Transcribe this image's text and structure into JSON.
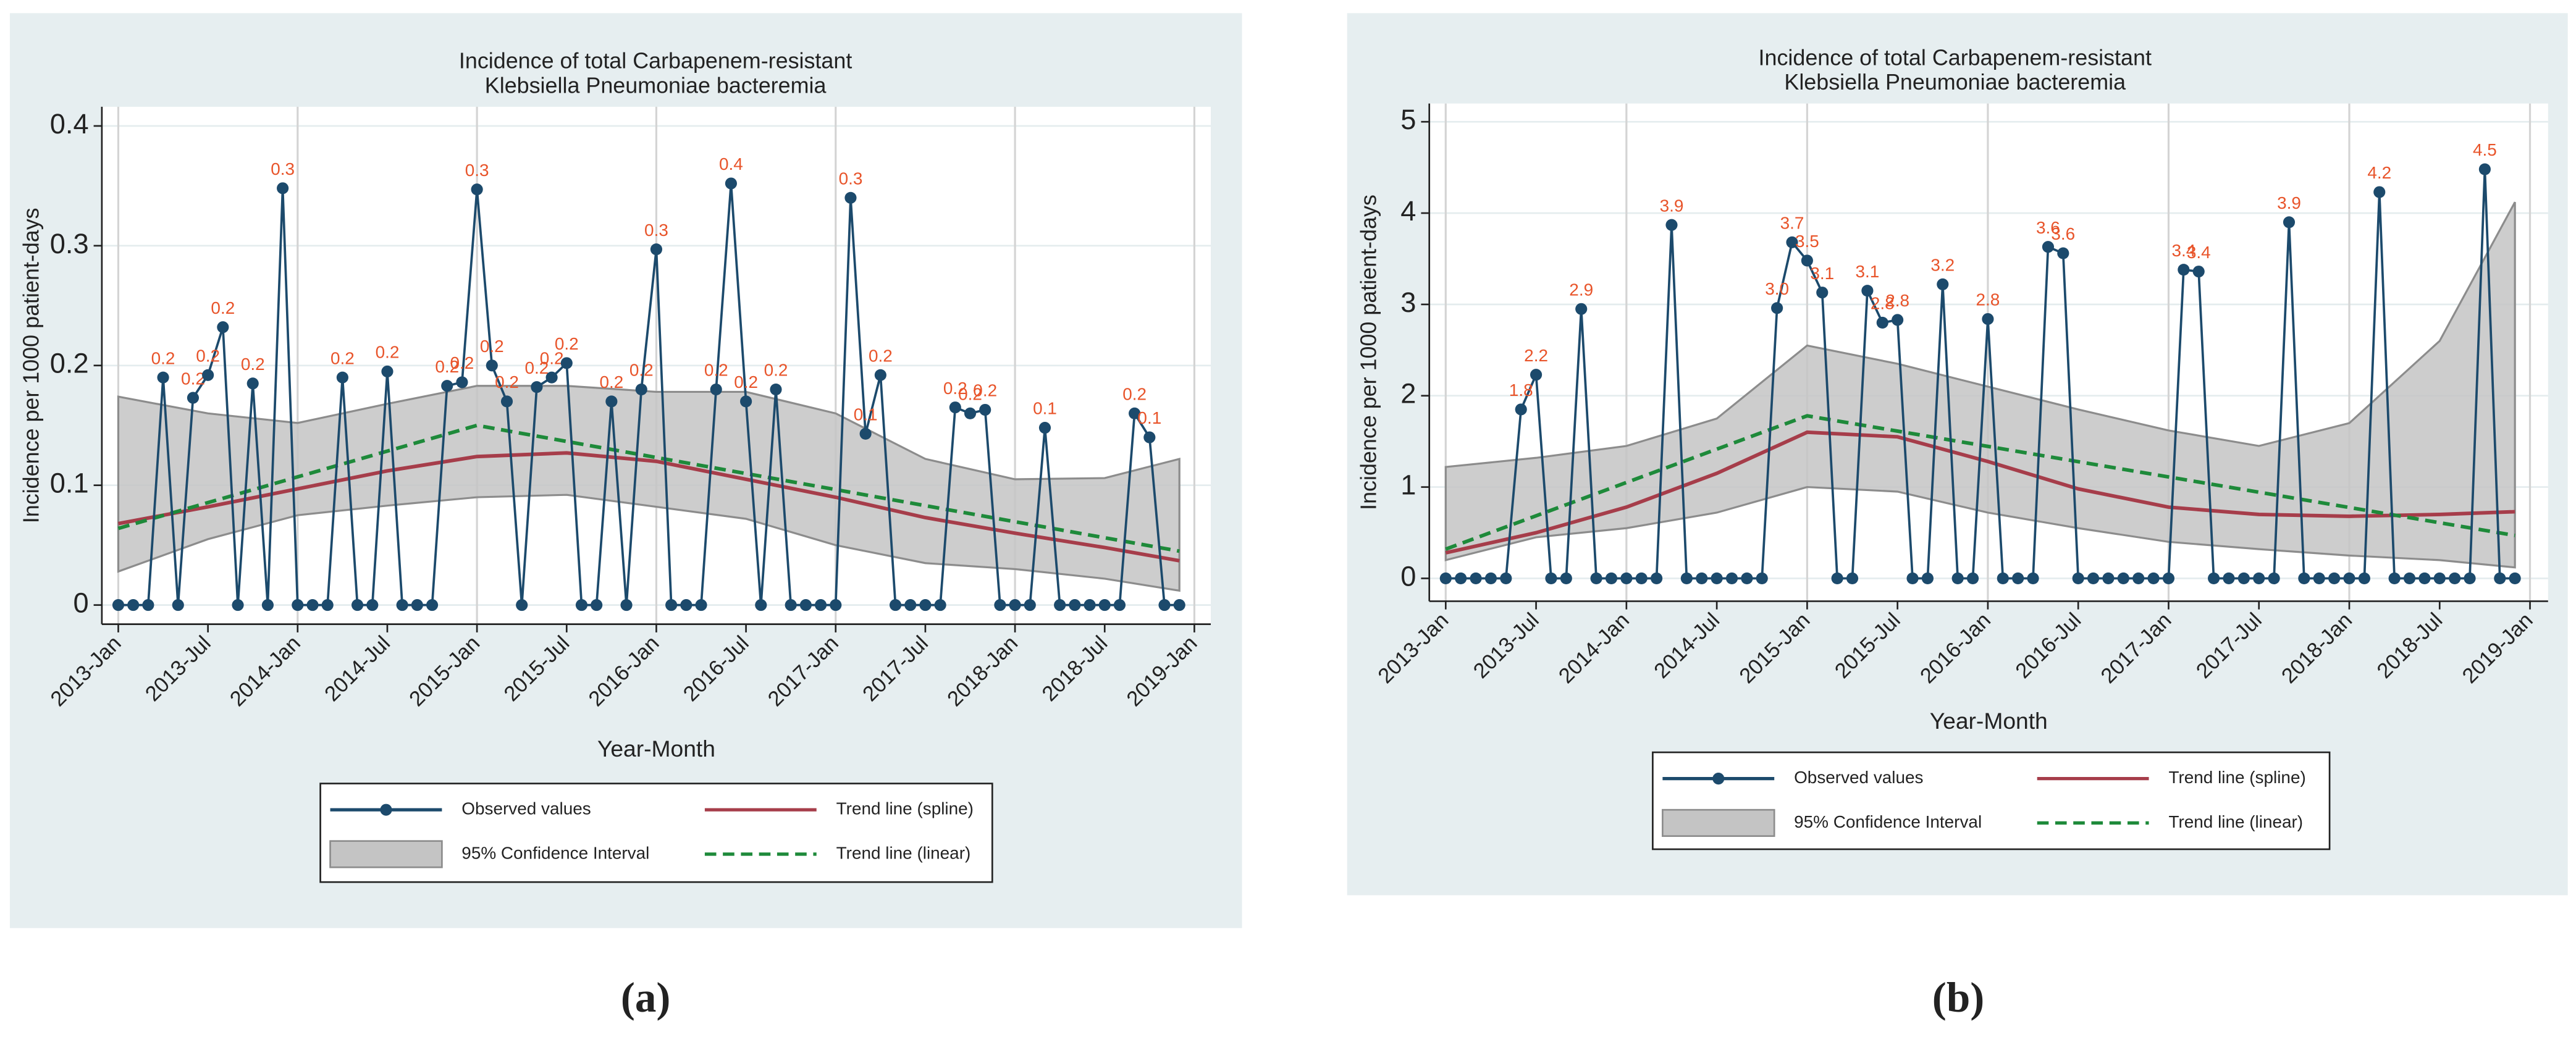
{
  "chart_data": [
    {
      "type": "line",
      "caption": "(a)",
      "title": [
        "Incidence of total Carbapenem-resistant",
        "Klebsiella Pneumoniae bacteremia"
      ],
      "x_label": "Year-Month",
      "y_label": "Incidence per 1000 patient-days",
      "x": [
        "2013-Jan",
        "2013-Feb",
        "2013-Mar",
        "2013-Apr",
        "2013-May",
        "2013-Jun",
        "2013-Jul",
        "2013-Aug",
        "2013-Sep",
        "2013-Oct",
        "2013-Nov",
        "2013-Dec",
        "2014-Jan",
        "2014-Feb",
        "2014-Mar",
        "2014-Apr",
        "2014-May",
        "2014-Jun",
        "2014-Jul",
        "2014-Aug",
        "2014-Sep",
        "2014-Oct",
        "2014-Nov",
        "2014-Dec",
        "2015-Jan",
        "2015-Feb",
        "2015-Mar",
        "2015-Apr",
        "2015-May",
        "2015-Jun",
        "2015-Jul",
        "2015-Aug",
        "2015-Sep",
        "2015-Oct",
        "2015-Nov",
        "2015-Dec",
        "2016-Jan",
        "2016-Feb",
        "2016-Mar",
        "2016-Apr",
        "2016-May",
        "2016-Jun",
        "2016-Jul",
        "2016-Aug",
        "2016-Sep",
        "2016-Oct",
        "2016-Nov",
        "2016-Dec",
        "2017-Jan",
        "2017-Feb",
        "2017-Mar",
        "2017-Apr",
        "2017-May",
        "2017-Jun",
        "2017-Jul",
        "2017-Aug",
        "2017-Sep",
        "2017-Oct",
        "2017-Nov",
        "2017-Dec",
        "2018-Jan",
        "2018-Feb",
        "2018-Mar",
        "2018-Apr",
        "2018-May",
        "2018-Jun",
        "2018-Jul",
        "2018-Aug",
        "2018-Sep",
        "2018-Oct",
        "2018-Nov",
        "2018-Dec"
      ],
      "xticks": [
        "2013-Jan",
        "2013-Jul",
        "2014-Jan",
        "2014-Jul",
        "2015-Jan",
        "2015-Jul",
        "2016-Jan",
        "2016-Jul",
        "2017-Jan",
        "2017-Jul",
        "2018-Jan",
        "2018-Jul",
        "2019-Jan"
      ],
      "ylim": [
        -0.016,
        0.416
      ],
      "yticks": [
        0,
        0.1,
        0.2,
        0.3,
        0.4
      ],
      "grid": true,
      "series": [
        {
          "name": "Observed values",
          "color": "#1c4a6c",
          "label_color": "#e8542a",
          "values": [
            0,
            0,
            0,
            0.19,
            0,
            0.173,
            0.192,
            0.232,
            0,
            0.185,
            0,
            0.348,
            0,
            0,
            0,
            0.19,
            0,
            0,
            0.195,
            0,
            0,
            0,
            0.183,
            0.186,
            0.347,
            0.2,
            0.17,
            0,
            0.182,
            0.19,
            0.202,
            0,
            0,
            0.17,
            0,
            0.18,
            0.297,
            0,
            0,
            0,
            0.18,
            0.352,
            0.17,
            0,
            0.18,
            0,
            0,
            0,
            0,
            0.34,
            0.143,
            0.192,
            0,
            0,
            0,
            0,
            0.165,
            0.16,
            0.163,
            0,
            0,
            0,
            0.148,
            0,
            0,
            0,
            0,
            0,
            0.16,
            0.14,
            0,
            0
          ],
          "value_labels": [
            null,
            null,
            null,
            "0.2",
            null,
            "0.2",
            "0.2",
            "0.2",
            null,
            "0.2",
            null,
            "0.3",
            null,
            null,
            null,
            "0.2",
            null,
            null,
            "0.2",
            null,
            null,
            null,
            "0.2",
            "0.2",
            "0.3",
            "0.2",
            "0.2",
            null,
            "0.2",
            "0.2",
            "0.2",
            null,
            null,
            "0.2",
            null,
            "0.2",
            "0.3",
            null,
            null,
            null,
            "0.2",
            "0.4",
            "0.2",
            null,
            "0.2",
            null,
            null,
            null,
            null,
            "0.3",
            "0.1",
            "0.2",
            null,
            null,
            null,
            null,
            "0.2",
            "0.2",
            "0.2",
            null,
            null,
            null,
            "0.1",
            null,
            null,
            null,
            null,
            null,
            "0.2",
            "0.1",
            null,
            null
          ]
        },
        {
          "name": "Trend line (spline)",
          "color": "#a63d4a",
          "x": [
            "2013-Jan",
            "2013-Jul",
            "2014-Jan",
            "2014-Jul",
            "2015-Jan",
            "2015-Jul",
            "2016-Jan",
            "2016-Jul",
            "2017-Jan",
            "2017-Jul",
            "2018-Jan",
            "2018-Jul",
            "2018-Dec"
          ],
          "values": [
            0.068,
            0.082,
            0.097,
            0.112,
            0.124,
            0.127,
            0.12,
            0.105,
            0.09,
            0.073,
            0.06,
            0.048,
            0.037
          ]
        },
        {
          "name": "95% Confidence Interval",
          "color": "#c4c4c4",
          "x": [
            "2013-Jan",
            "2013-Jul",
            "2014-Jan",
            "2014-Jul",
            "2015-Jan",
            "2015-Jul",
            "2016-Jan",
            "2016-Jul",
            "2017-Jan",
            "2017-Jul",
            "2018-Jan",
            "2018-Jul",
            "2018-Dec"
          ],
          "upper": [
            0.174,
            0.16,
            0.152,
            0.168,
            0.183,
            0.183,
            0.178,
            0.178,
            0.16,
            0.122,
            0.105,
            0.106,
            0.122
          ],
          "lower": [
            0.028,
            0.055,
            0.075,
            0.083,
            0.09,
            0.092,
            0.082,
            0.072,
            0.05,
            0.035,
            0.03,
            0.022,
            0.012
          ]
        },
        {
          "name": "Trend line (linear)",
          "color": "#1e8a3a",
          "dashed": true,
          "x": [
            "2013-Jan",
            "2015-Jan",
            "2018-Dec"
          ],
          "values": [
            0.064,
            0.15,
            0.045
          ]
        }
      ]
    },
    {
      "type": "line",
      "caption": "(b)",
      "title": [
        "Incidence of total Carbapenem-resistant",
        "Klebsiella Pneumoniae bacteremia"
      ],
      "x_label": "Year-Month",
      "y_label": "Incidence per 1000 patient-days",
      "x": [
        "2013-Jan",
        "2013-Feb",
        "2013-Mar",
        "2013-Apr",
        "2013-May",
        "2013-Jun",
        "2013-Jul",
        "2013-Aug",
        "2013-Sep",
        "2013-Oct",
        "2013-Nov",
        "2013-Dec",
        "2014-Jan",
        "2014-Feb",
        "2014-Mar",
        "2014-Apr",
        "2014-May",
        "2014-Jun",
        "2014-Jul",
        "2014-Aug",
        "2014-Sep",
        "2014-Oct",
        "2014-Nov",
        "2014-Dec",
        "2015-Jan",
        "2015-Feb",
        "2015-Mar",
        "2015-Apr",
        "2015-May",
        "2015-Jun",
        "2015-Jul",
        "2015-Aug",
        "2015-Sep",
        "2015-Oct",
        "2015-Nov",
        "2015-Dec",
        "2016-Jan",
        "2016-Feb",
        "2016-Mar",
        "2016-Apr",
        "2016-May",
        "2016-Jun",
        "2016-Jul",
        "2016-Aug",
        "2016-Sep",
        "2016-Oct",
        "2016-Nov",
        "2016-Dec",
        "2017-Jan",
        "2017-Feb",
        "2017-Mar",
        "2017-Apr",
        "2017-May",
        "2017-Jun",
        "2017-Jul",
        "2017-Aug",
        "2017-Sep",
        "2017-Oct",
        "2017-Nov",
        "2017-Dec",
        "2018-Jan",
        "2018-Feb",
        "2018-Mar",
        "2018-Apr",
        "2018-May",
        "2018-Jun",
        "2018-Jul",
        "2018-Aug",
        "2018-Sep",
        "2018-Oct",
        "2018-Nov",
        "2018-Dec"
      ],
      "xticks": [
        "2013-Jan",
        "2013-Jul",
        "2014-Jan",
        "2014-Jul",
        "2015-Jan",
        "2015-Jul",
        "2016-Jan",
        "2016-Jul",
        "2017-Jan",
        "2017-Jul",
        "2018-Jan",
        "2018-Jul",
        "2019-Jan"
      ],
      "ylim": [
        -0.25,
        5.2
      ],
      "yticks": [
        0,
        1,
        2,
        3,
        4,
        5
      ],
      "grid": true,
      "series": [
        {
          "name": "Observed values",
          "color": "#1c4a6c",
          "label_color": "#e8542a",
          "values": [
            0,
            0,
            0,
            0,
            0,
            1.85,
            2.23,
            0,
            0,
            2.95,
            0,
            0,
            0,
            0,
            0,
            3.87,
            0,
            0,
            0,
            0,
            0,
            0,
            2.96,
            3.68,
            3.48,
            3.13,
            0,
            0,
            3.15,
            2.8,
            2.83,
            0,
            0,
            3.22,
            0,
            0,
            2.84,
            0,
            0,
            0,
            3.63,
            3.56,
            0,
            0,
            0,
            0,
            0,
            0,
            0,
            3.38,
            3.36,
            0,
            0,
            0,
            0,
            0,
            3.9,
            0,
            0,
            0,
            0,
            0,
            4.23,
            0,
            0,
            0,
            0,
            0,
            0,
            4.48,
            0,
            0
          ],
          "value_labels": [
            null,
            null,
            null,
            null,
            null,
            "1.8",
            "2.2",
            null,
            null,
            "2.9",
            null,
            null,
            null,
            null,
            null,
            "3.9",
            null,
            null,
            null,
            null,
            null,
            null,
            "3.0",
            "3.7",
            "3.5",
            "3.1",
            null,
            null,
            "3.1",
            "2.8",
            "2.8",
            null,
            null,
            "3.2",
            null,
            null,
            "2.8",
            null,
            null,
            null,
            "3.6",
            "3.6",
            null,
            null,
            null,
            null,
            null,
            null,
            null,
            "3.4",
            "3.4",
            null,
            null,
            null,
            null,
            null,
            "3.9",
            null,
            null,
            null,
            null,
            null,
            "4.2",
            null,
            null,
            null,
            null,
            null,
            null,
            "4.5",
            null,
            null
          ]
        },
        {
          "name": "Trend line (spline)",
          "color": "#a63d4a",
          "x": [
            "2013-Jan",
            "2013-Jul",
            "2014-Jan",
            "2014-Jul",
            "2015-Jan",
            "2015-Jul",
            "2016-Jan",
            "2016-Jul",
            "2017-Jan",
            "2017-Jul",
            "2018-Jan",
            "2018-Jul",
            "2018-Dec"
          ],
          "values": [
            0.28,
            0.5,
            0.78,
            1.15,
            1.6,
            1.55,
            1.28,
            0.98,
            0.78,
            0.7,
            0.68,
            0.7,
            0.73
          ]
        },
        {
          "name": "95% Confidence Interval",
          "color": "#c4c4c4",
          "x": [
            "2013-Jan",
            "2013-Jul",
            "2014-Jan",
            "2014-Jul",
            "2015-Jan",
            "2015-Jul",
            "2016-Jan",
            "2016-Jul",
            "2017-Jan",
            "2017-Jul",
            "2018-Jan",
            "2018-Jul",
            "2018-Dec"
          ],
          "upper": [
            1.22,
            1.32,
            1.45,
            1.75,
            2.55,
            2.35,
            2.1,
            1.85,
            1.62,
            1.45,
            1.7,
            2.6,
            4.12
          ],
          "lower": [
            0.2,
            0.45,
            0.55,
            0.72,
            1.0,
            0.95,
            0.72,
            0.55,
            0.4,
            0.32,
            0.25,
            0.2,
            0.12
          ]
        },
        {
          "name": "Trend line (linear)",
          "color": "#1e8a3a",
          "dashed": true,
          "x": [
            "2013-Jan",
            "2015-Jan",
            "2018-Dec"
          ],
          "values": [
            0.32,
            1.78,
            0.47
          ]
        }
      ]
    }
  ]
}
